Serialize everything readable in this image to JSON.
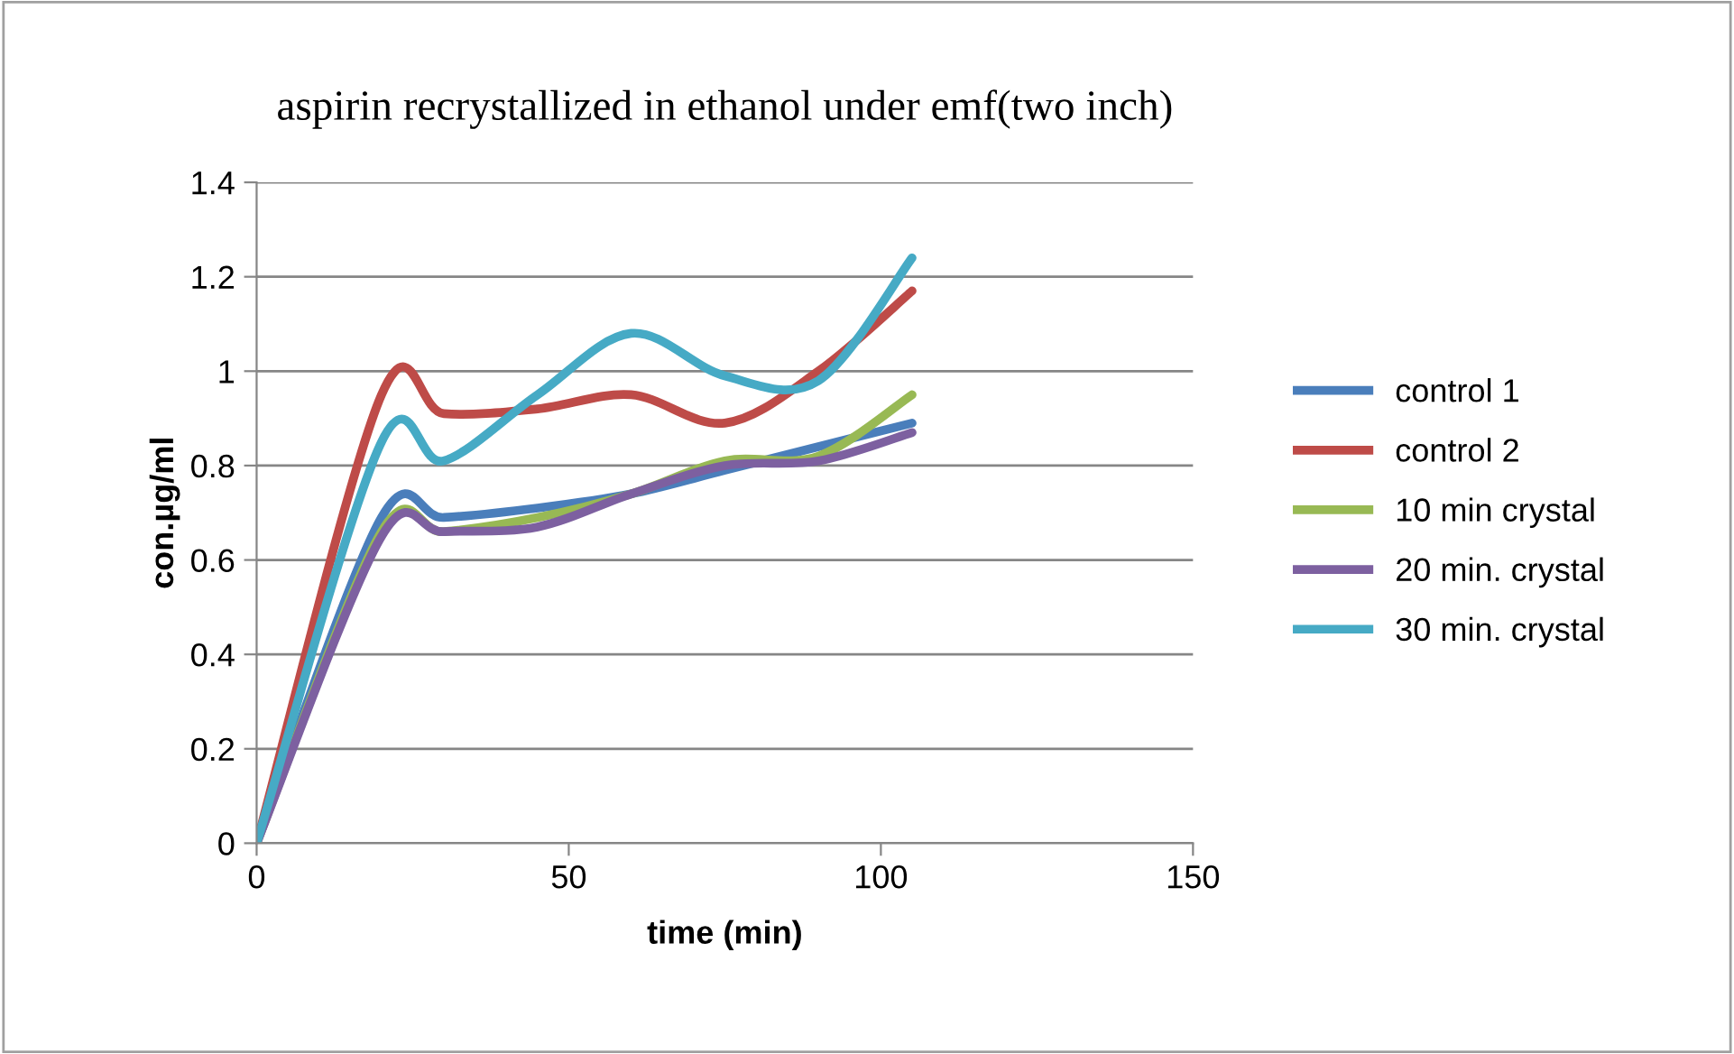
{
  "chart_data": {
    "type": "line",
    "title": "aspirin recrystallized in ethanol under emf(two inch)",
    "xlabel": "time (min)",
    "ylabel": "con.µg/ml",
    "x": [
      0,
      20,
      30,
      45,
      60,
      75,
      90,
      105
    ],
    "series": [
      {
        "name": "control 1",
        "color": "#4a7ebb",
        "values": [
          0,
          0.69,
          0.69,
          0.71,
          0.74,
          0.79,
          0.84,
          0.89
        ]
      },
      {
        "name": "control 2",
        "color": "#be4b48",
        "values": [
          0,
          0.95,
          0.91,
          0.92,
          0.95,
          0.89,
          1.0,
          1.17
        ]
      },
      {
        "name": "10 min crystal",
        "color": "#98b954",
        "values": [
          0,
          0.66,
          0.66,
          0.69,
          0.74,
          0.81,
          0.82,
          0.95
        ]
      },
      {
        "name": "20 min. crystal",
        "color": "#7d60a0",
        "values": [
          0,
          0.65,
          0.66,
          0.67,
          0.74,
          0.8,
          0.81,
          0.87
        ]
      },
      {
        "name": "30 min. crystal",
        "color": "#46aac5",
        "values": [
          0,
          0.85,
          0.81,
          0.95,
          1.08,
          0.99,
          0.98,
          1.24
        ]
      }
    ],
    "xlim": [
      0,
      150
    ],
    "xticks": [
      0,
      50,
      100,
      150
    ],
    "ylim": [
      0,
      1.4
    ],
    "yticks": [
      0,
      0.2,
      0.4,
      0.6,
      0.8,
      1,
      1.2,
      1.4
    ],
    "grid": "y",
    "legend": "right",
    "marker": "none",
    "line_style": "solid"
  }
}
